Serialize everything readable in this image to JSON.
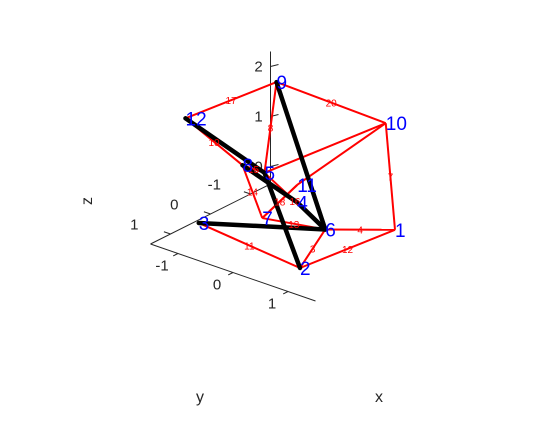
{
  "chart_data": {
    "type": "3d-line",
    "title": "",
    "xlabel": "x",
    "ylabel": "y",
    "zlabel": "z",
    "x_ticks": [
      "-1",
      "0",
      "1"
    ],
    "y_ticks": [
      "-1",
      "0",
      "1"
    ],
    "z_ticks": [
      "0",
      "1",
      "2"
    ],
    "grid": false,
    "colors": {
      "cable": "#ff0000",
      "bar": "#000000",
      "label": "#0000ff",
      "axis": "#262626"
    },
    "nodes": [
      {
        "id": "1",
        "x": 1.2,
        "y": -0.9,
        "z": 0
      },
      {
        "id": "2",
        "x": 1.0,
        "y": 1.2,
        "z": 0
      },
      {
        "id": "3",
        "x": -0.95,
        "y": 1.05,
        "z": 0.1
      },
      {
        "id": "4",
        "x": 0.15,
        "y": 0.1,
        "z": 0.55
      },
      {
        "id": "5",
        "x": -0.3,
        "y": 0.3,
        "z": 1.05
      },
      {
        "id": "6",
        "x": 0.55,
        "y": -0.05,
        "z": 0.1
      },
      {
        "id": "7",
        "x": -0.05,
        "y": 0.7,
        "z": 0.4
      },
      {
        "id": "8",
        "x": -0.7,
        "y": 0.3,
        "z": 1.05
      },
      {
        "id": "9",
        "x": -1.1,
        "y": -1.1,
        "z": 2.0
      },
      {
        "id": "10",
        "x": 0.85,
        "y": -1.15,
        "z": 1.9
      },
      {
        "id": "11",
        "x": 0.15,
        "y": 0.1,
        "z": 0.9
      },
      {
        "id": "12",
        "x": -1.3,
        "y": 0.9,
        "z": 2.0
      }
    ],
    "cables": [
      {
        "id": "11",
        "from": "3",
        "to": "2"
      },
      {
        "id": "12",
        "from": "2",
        "to": "1"
      },
      {
        "id": "",
        "from": "3",
        "to": "6"
      },
      {
        "id": "3",
        "from": "2",
        "to": "6"
      },
      {
        "id": "4",
        "from": "6",
        "to": "1"
      },
      {
        "id": "7",
        "from": "1",
        "to": "10"
      },
      {
        "id": "13",
        "from": "7",
        "to": "6"
      },
      {
        "id": "14",
        "from": "8",
        "to": "7"
      },
      {
        "id": "15",
        "from": "8",
        "to": "5"
      },
      {
        "id": "16",
        "from": "5",
        "to": "6"
      },
      {
        "id": "",
        "from": "7",
        "to": "11"
      },
      {
        "id": "10",
        "from": "12",
        "to": "8"
      },
      {
        "id": "17",
        "from": "12",
        "to": "9"
      },
      {
        "id": "20",
        "from": "9",
        "to": "10"
      },
      {
        "id": "8",
        "from": "9",
        "to": "5"
      },
      {
        "id": "",
        "from": "10",
        "to": "5"
      },
      {
        "id": "",
        "from": "10",
        "to": "11"
      },
      {
        "id": "18",
        "from": "7",
        "to": "11"
      }
    ],
    "bars": [
      {
        "from": "9",
        "to": "6"
      },
      {
        "from": "12",
        "to": "5"
      },
      {
        "from": "3",
        "to": "6"
      },
      {
        "from": "2",
        "to": "5"
      },
      {
        "from": "8",
        "to": "4"
      },
      {
        "from": "4",
        "to": "6"
      }
    ]
  }
}
